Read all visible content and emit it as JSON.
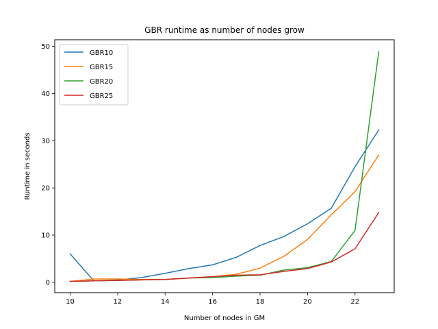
{
  "chart_data": {
    "type": "line",
    "title": "GBR runtime as number of nodes grow",
    "xlabel": "Number of nodes in GM",
    "ylabel": "Runtime in seconds",
    "xlim": [
      9.35,
      23.65
    ],
    "ylim": [
      -2.2,
      51.4
    ],
    "xticks": [
      10,
      12,
      14,
      16,
      18,
      20,
      22
    ],
    "yticks": [
      0,
      10,
      20,
      30,
      40,
      50
    ],
    "grid": false,
    "legend_position": "upper-left",
    "x": [
      10,
      11,
      12,
      13,
      14,
      15,
      16,
      17,
      18,
      19,
      20,
      21,
      22,
      23
    ],
    "series": [
      {
        "name": "GBR10",
        "color": "#1f77b4",
        "values": [
          6.0,
          0.3,
          0.5,
          1.0,
          1.9,
          2.9,
          3.7,
          5.3,
          7.8,
          9.7,
          12.4,
          15.7,
          24.5,
          32.3
        ]
      },
      {
        "name": "GBR15",
        "color": "#ff7f0e",
        "values": [
          0.2,
          0.7,
          0.7,
          0.6,
          0.6,
          0.9,
          1.2,
          1.7,
          3.0,
          5.5,
          9.1,
          14.3,
          19.2,
          27.0
        ]
      },
      {
        "name": "GBR20",
        "color": "#2ca02c",
        "values": [
          0.2,
          0.3,
          0.4,
          0.5,
          0.6,
          0.9,
          1.0,
          1.3,
          1.5,
          2.6,
          3.1,
          4.4,
          11.0,
          48.9
        ]
      },
      {
        "name": "GBR25",
        "color": "#d62728",
        "values": [
          0.2,
          0.3,
          0.4,
          0.5,
          0.6,
          0.9,
          1.2,
          1.5,
          1.6,
          2.3,
          2.9,
          4.3,
          7.1,
          14.8
        ]
      }
    ]
  }
}
